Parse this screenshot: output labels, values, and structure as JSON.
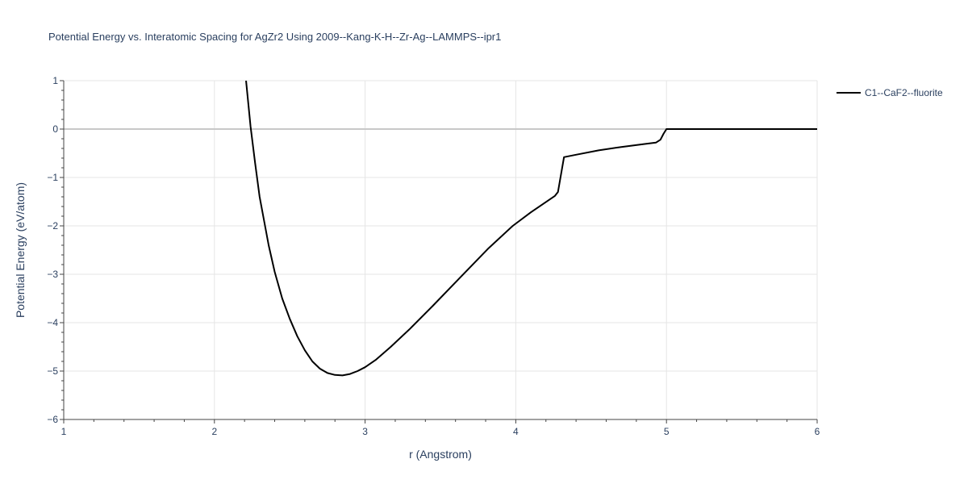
{
  "chart_data": {
    "type": "line",
    "title": "Potential Energy vs. Interatomic Spacing for AgZr2 Using 2009--Kang-K-H--Zr-Ag--LAMMPS--ipr1",
    "xlabel": "r (Angstrom)",
    "ylabel": "Potential Energy (eV/atom)",
    "xlim": [
      1,
      6
    ],
    "ylim": [
      -6,
      1
    ],
    "x_ticks": [
      1,
      2,
      3,
      4,
      5,
      6
    ],
    "y_ticks": [
      1,
      0,
      -1,
      -2,
      -3,
      -4,
      -5,
      -6
    ],
    "x_tick_labels": [
      "1",
      "2",
      "3",
      "4",
      "5",
      "6"
    ],
    "y_tick_labels": [
      "1",
      "0",
      "−1",
      "−2",
      "−3",
      "−4",
      "−5",
      "−6"
    ],
    "grid": true,
    "legend_position": "top-right",
    "series": [
      {
        "name": "C1--CaF2--fluorite",
        "color": "#000000",
        "x": [
          2.21,
          2.24,
          2.27,
          2.3,
          2.33,
          2.36,
          2.4,
          2.45,
          2.5,
          2.55,
          2.6,
          2.65,
          2.7,
          2.75,
          2.8,
          2.85,
          2.9,
          2.95,
          3.0,
          3.07,
          3.17,
          3.3,
          3.45,
          3.63,
          3.82,
          3.98,
          4.1,
          4.26,
          4.28,
          4.32,
          4.4,
          4.55,
          4.7,
          4.85,
          4.93,
          4.96,
          4.98,
          5.0,
          5.2,
          5.6,
          6.0
        ],
        "y": [
          1.0,
          0.05,
          -0.7,
          -1.4,
          -1.9,
          -2.4,
          -2.95,
          -3.5,
          -3.92,
          -4.28,
          -4.57,
          -4.8,
          -4.95,
          -5.04,
          -5.08,
          -5.09,
          -5.06,
          -5.0,
          -4.92,
          -4.77,
          -4.5,
          -4.12,
          -3.65,
          -3.07,
          -2.46,
          -2.0,
          -1.72,
          -1.38,
          -1.3,
          -0.58,
          -0.53,
          -0.44,
          -0.37,
          -0.31,
          -0.28,
          -0.22,
          -0.1,
          0.0,
          0.0,
          0.0,
          0.0
        ]
      }
    ]
  }
}
